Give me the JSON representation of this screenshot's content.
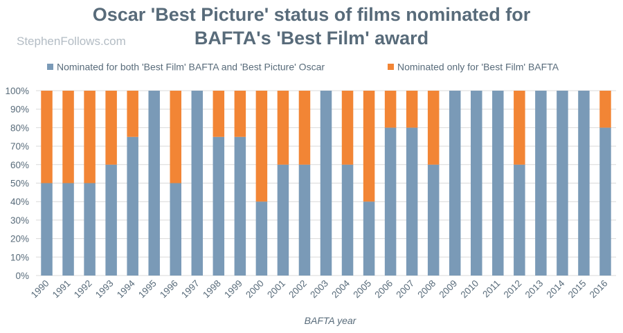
{
  "header": {
    "title_line1": "Oscar 'Best Picture' status of films nominated for",
    "title_line2": "BAFTA's 'Best Film' award",
    "watermark": "StephenFollows.com"
  },
  "colors": {
    "both": "#7a9ab7",
    "only_bafta": "#f28535",
    "grid": "#d9d9d9",
    "text": "#586b7a"
  },
  "chart_data": {
    "type": "bar",
    "stacked": true,
    "xlabel": "BAFTA year",
    "ylabel": "",
    "ylim": [
      0,
      100
    ],
    "yticks": [
      "0%",
      "10%",
      "20%",
      "30%",
      "40%",
      "50%",
      "60%",
      "70%",
      "80%",
      "90%",
      "100%"
    ],
    "legend_position": "top",
    "grid": true,
    "categories": [
      "1990",
      "1991",
      "1992",
      "1993",
      "1994",
      "1995",
      "1996",
      "1997",
      "1998",
      "1999",
      "2000",
      "2001",
      "2002",
      "2003",
      "2004",
      "2005",
      "2006",
      "2007",
      "2008",
      "2009",
      "2010",
      "2011",
      "2012",
      "2013",
      "2014",
      "2015",
      "2016"
    ],
    "series": [
      {
        "name": "Nominated for both 'Best Film' BAFTA and 'Best Picture' Oscar",
        "color": "#7a9ab7",
        "values": [
          50,
          50,
          50,
          60,
          75,
          100,
          50,
          100,
          75,
          75,
          40,
          60,
          60,
          100,
          60,
          40,
          80,
          80,
          60,
          100,
          100,
          100,
          60,
          100,
          100,
          100,
          80
        ]
      },
      {
        "name": "Nominated only for 'Best Film' BAFTA",
        "color": "#f28535",
        "values": [
          50,
          50,
          50,
          40,
          25,
          0,
          50,
          0,
          25,
          25,
          60,
          40,
          40,
          0,
          40,
          60,
          20,
          20,
          40,
          0,
          0,
          0,
          40,
          0,
          0,
          0,
          20
        ]
      }
    ]
  }
}
